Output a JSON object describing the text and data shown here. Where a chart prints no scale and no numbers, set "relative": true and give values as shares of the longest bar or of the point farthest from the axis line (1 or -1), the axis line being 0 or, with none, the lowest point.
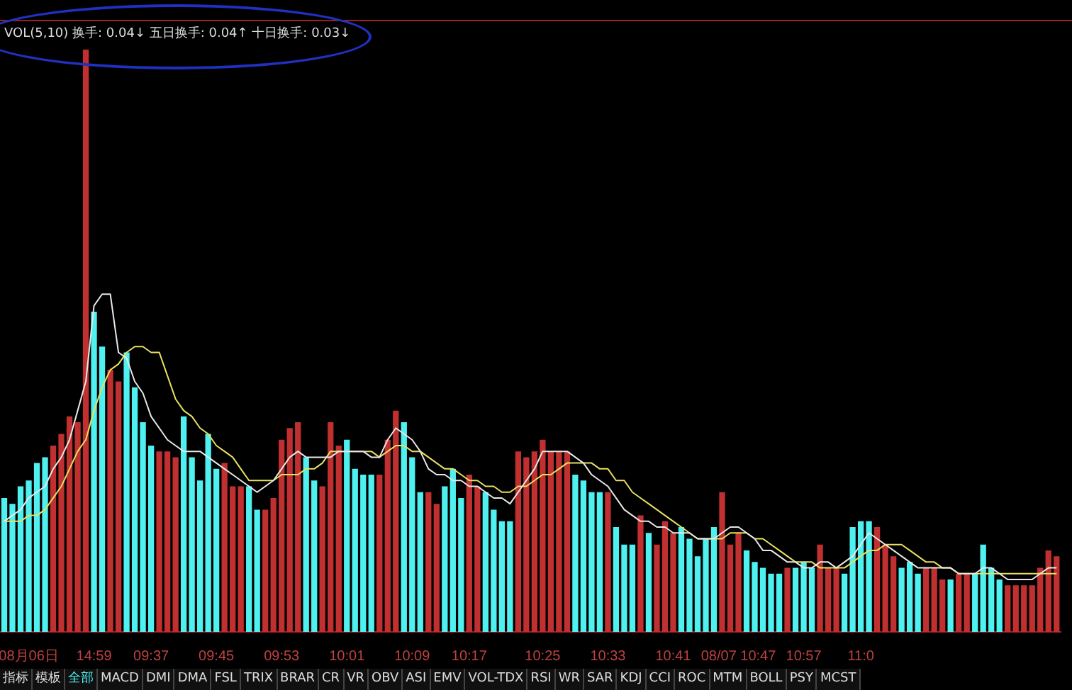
{
  "chart_data": {
    "type": "bar",
    "relative": true,
    "title": "VOL(5,10) 换手: 0.04↓ 五日换手: 0.04↑ 十日换手: 0.03↓",
    "legend": false,
    "categories": [
      null,
      null,
      null,
      "08月06日",
      null,
      null,
      null,
      null,
      null,
      null,
      null,
      "14:59",
      null,
      null,
      null,
      null,
      null,
      null,
      "09:37",
      null,
      null,
      null,
      null,
      null,
      null,
      null,
      "09:45",
      null,
      null,
      null,
      null,
      null,
      null,
      null,
      "09:53",
      null,
      null,
      null,
      null,
      null,
      null,
      null,
      "10:01",
      null,
      null,
      null,
      null,
      null,
      null,
      null,
      "10:09",
      null,
      null,
      null,
      null,
      null,
      null,
      "10:17",
      null,
      null,
      null,
      null,
      null,
      null,
      null,
      null,
      "10:25",
      null,
      null,
      null,
      null,
      null,
      null,
      null,
      "10:33",
      null,
      null,
      null,
      null,
      null,
      null,
      null,
      "10:41",
      null,
      null,
      null,
      null,
      null,
      null,
      null,
      "08/07 10:47",
      null,
      null,
      null,
      null,
      null,
      null,
      null,
      "10:57",
      null,
      null,
      null,
      null,
      null,
      null,
      "11:0",
      null,
      null,
      null,
      null,
      null,
      null,
      null,
      null,
      null,
      null,
      null,
      null,
      null,
      null,
      null,
      null,
      null,
      null,
      null,
      null,
      null,
      null,
      null,
      null
    ],
    "series": [
      {
        "values": [
          0.23,
          0.22,
          0.25,
          0.26,
          0.29,
          0.3,
          0.32,
          0.34,
          0.37,
          0.36,
          1,
          0.55,
          0.49,
          0.45,
          0.43,
          0.48,
          0.42,
          0.36,
          0.32,
          0.31,
          0.31,
          0.3,
          0.37,
          0.3,
          0.26,
          0.34,
          0.28,
          0.29,
          0.25,
          0.25,
          0.25,
          0.21,
          0.21,
          0.23,
          0.33,
          0.35,
          0.36,
          0.3,
          0.26,
          0.25,
          0.36,
          0.32,
          0.33,
          0.28,
          0.27,
          0.27,
          0.27,
          0.33,
          0.38,
          0.36,
          0.3,
          0.24,
          0.24,
          0.22,
          0.25,
          0.28,
          0.23,
          0.27,
          0.25,
          0.24,
          0.21,
          0.19,
          0.19,
          0.31,
          0.3,
          0.31,
          0.33,
          0.31,
          0.31,
          0.31,
          0.27,
          0.26,
          0.24,
          0.24,
          0.24,
          0.18,
          0.15,
          0.15,
          0.2,
          0.17,
          0.15,
          0.19,
          0.17,
          0.18,
          0.16,
          0.13,
          0.16,
          0.18,
          0.24,
          0.15,
          0.17,
          0.14,
          0.12,
          0.11,
          0.1,
          0.1,
          0.11,
          0.11,
          0.12,
          0.11,
          0.15,
          0.11,
          0.11,
          0.1,
          0.18,
          0.19,
          0.19,
          0.18,
          0.15,
          0.13,
          0.11,
          0.12,
          0.1,
          0.11,
          0.11,
          0.09,
          0.09,
          0.1,
          0.1,
          0.1,
          0.15,
          0.11,
          0.09,
          0.08,
          0.08,
          0.08,
          0.08,
          0.11,
          0.14,
          0.13
        ],
        "colors": [
          "#4ff0f0",
          "#4ff0f0",
          "#4ff0f0",
          "#4ff0f0",
          "#4ff0f0",
          "#4ff0f0",
          "#c03030",
          "#c03030",
          "#c03030",
          "#c03030",
          "#c03030",
          "#4ff0f0",
          "#4ff0f0",
          "#c03030",
          "#c03030",
          "#4ff0f0",
          "#4ff0f0",
          "#4ff0f0",
          "#4ff0f0",
          "#c03030",
          "#c03030",
          "#c03030",
          "#4ff0f0",
          "#4ff0f0",
          "#4ff0f0",
          "#4ff0f0",
          "#4ff0f0",
          "#c03030",
          "#c03030",
          "#c03030",
          "#4ff0f0",
          "#4ff0f0",
          "#c03030",
          "#c03030",
          "#c03030",
          "#c03030",
          "#c03030",
          "#4ff0f0",
          "#4ff0f0",
          "#c03030",
          "#c03030",
          "#c03030",
          "#4ff0f0",
          "#4ff0f0",
          "#4ff0f0",
          "#4ff0f0",
          "#c03030",
          "#c03030",
          "#c03030",
          "#4ff0f0",
          "#4ff0f0",
          "#4ff0f0",
          "#c03030",
          "#c03030",
          "#4ff0f0",
          "#4ff0f0",
          "#4ff0f0",
          "#c03030",
          "#c03030",
          "#4ff0f0",
          "#4ff0f0",
          "#4ff0f0",
          "#4ff0f0",
          "#c03030",
          "#c03030",
          "#c03030",
          "#c03030",
          "#c03030",
          "#c03030",
          "#c03030",
          "#4ff0f0",
          "#4ff0f0",
          "#4ff0f0",
          "#4ff0f0",
          "#c03030",
          "#4ff0f0",
          "#4ff0f0",
          "#4ff0f0",
          "#c03030",
          "#4ff0f0",
          "#c03030",
          "#c03030",
          "#c03030",
          "#4ff0f0",
          "#4ff0f0",
          "#4ff0f0",
          "#4ff0f0",
          "#4ff0f0",
          "#c03030",
          "#c03030",
          "#c03030",
          "#4ff0f0",
          "#4ff0f0",
          "#4ff0f0",
          "#4ff0f0",
          "#4ff0f0",
          "#c03030",
          "#4ff0f0",
          "#4ff0f0",
          "#4ff0f0",
          "#c03030",
          "#c03030",
          "#c03030",
          "#4ff0f0",
          "#4ff0f0",
          "#4ff0f0",
          "#4ff0f0",
          "#c03030",
          "#c03030",
          "#c03030",
          "#4ff0f0",
          "#4ff0f0",
          "#4ff0f0",
          "#c03030",
          "#c03030",
          "#c03030",
          "#4ff0f0",
          "#c03030",
          "#c03030",
          "#4ff0f0",
          "#4ff0f0",
          "#4ff0f0",
          "#4ff0f0",
          "#c03030",
          "#c03030",
          "#c03030",
          "#c03030",
          "#c03030",
          "#c03030",
          "#c03030"
        ]
      },
      {
        "type": "line",
        "color": "#e8e8e8",
        "values": [
          0.19,
          0.2,
          0.21,
          0.23,
          0.24,
          0.25,
          0.28,
          0.3,
          0.33,
          0.38,
          0.43,
          0.56,
          0.58,
          0.58,
          0.48,
          0.47,
          0.43,
          0.41,
          0.37,
          0.35,
          0.33,
          0.32,
          0.31,
          0.31,
          0.31,
          0.3,
          0.29,
          0.28,
          0.27,
          0.26,
          0.25,
          0.24,
          0.25,
          0.26,
          0.28,
          0.3,
          0.31,
          0.3,
          0.3,
          0.3,
          0.3,
          0.31,
          0.31,
          0.31,
          0.31,
          0.3,
          0.3,
          0.33,
          0.35,
          0.34,
          0.33,
          0.31,
          0.28,
          0.27,
          0.27,
          0.26,
          0.26,
          0.25,
          0.25,
          0.24,
          0.23,
          0.23,
          0.22,
          0.24,
          0.26,
          0.28,
          0.31,
          0.31,
          0.31,
          0.31,
          0.3,
          0.29,
          0.27,
          0.26,
          0.25,
          0.23,
          0.21,
          0.2,
          0.19,
          0.19,
          0.18,
          0.18,
          0.17,
          0.17,
          0.17,
          0.16,
          0.16,
          0.16,
          0.17,
          0.18,
          0.18,
          0.17,
          0.16,
          0.14,
          0.14,
          0.13,
          0.12,
          0.12,
          0.11,
          0.11,
          0.12,
          0.12,
          0.11,
          0.12,
          0.13,
          0.15,
          0.17,
          0.16,
          0.15,
          0.14,
          0.13,
          0.12,
          0.11,
          0.11,
          0.11,
          0.11,
          0.11,
          0.1,
          0.1,
          0.1,
          0.11,
          0.11,
          0.1,
          0.09,
          0.09,
          0.09,
          0.09,
          0.1,
          0.11,
          0.11
        ]
      },
      {
        "type": "line",
        "color": "#e8e060",
        "values": [
          0.19,
          0.19,
          0.19,
          0.2,
          0.2,
          0.21,
          0.23,
          0.25,
          0.28,
          0.31,
          0.33,
          0.38,
          0.42,
          0.45,
          0.46,
          0.48,
          0.49,
          0.49,
          0.48,
          0.48,
          0.44,
          0.4,
          0.38,
          0.37,
          0.35,
          0.34,
          0.32,
          0.31,
          0.3,
          0.28,
          0.26,
          0.26,
          0.26,
          0.26,
          0.27,
          0.27,
          0.27,
          0.28,
          0.28,
          0.29,
          0.31,
          0.31,
          0.31,
          0.31,
          0.31,
          0.31,
          0.3,
          0.31,
          0.32,
          0.32,
          0.31,
          0.31,
          0.3,
          0.29,
          0.28,
          0.28,
          0.27,
          0.26,
          0.26,
          0.25,
          0.25,
          0.24,
          0.24,
          0.25,
          0.25,
          0.26,
          0.27,
          0.27,
          0.28,
          0.29,
          0.29,
          0.29,
          0.29,
          0.28,
          0.28,
          0.26,
          0.26,
          0.24,
          0.23,
          0.22,
          0.21,
          0.2,
          0.19,
          0.18,
          0.17,
          0.16,
          0.16,
          0.16,
          0.16,
          0.17,
          0.17,
          0.17,
          0.16,
          0.16,
          0.15,
          0.14,
          0.13,
          0.12,
          0.12,
          0.12,
          0.11,
          0.11,
          0.11,
          0.11,
          0.12,
          0.13,
          0.14,
          0.14,
          0.15,
          0.15,
          0.15,
          0.14,
          0.13,
          0.12,
          0.12,
          0.11,
          0.11,
          0.1,
          0.1,
          0.1,
          0.1,
          0.1,
          0.1,
          0.1,
          0.1,
          0.1,
          0.1,
          0.1,
          0.1,
          0.1
        ]
      }
    ],
    "annotations": [
      "指标",
      "模板",
      "全部",
      "MACD",
      "DMI",
      "DMA",
      "FSL",
      "TRIX",
      "BRAR",
      "CR",
      "VR",
      "OBV",
      "ASI",
      "EMV",
      "VOL-TDX",
      "RSI",
      "WR",
      "SAR",
      "KDJ",
      "CCI",
      "ROC",
      "MTM",
      "BOLL",
      "PSY",
      "MCST"
    ]
  }
}
